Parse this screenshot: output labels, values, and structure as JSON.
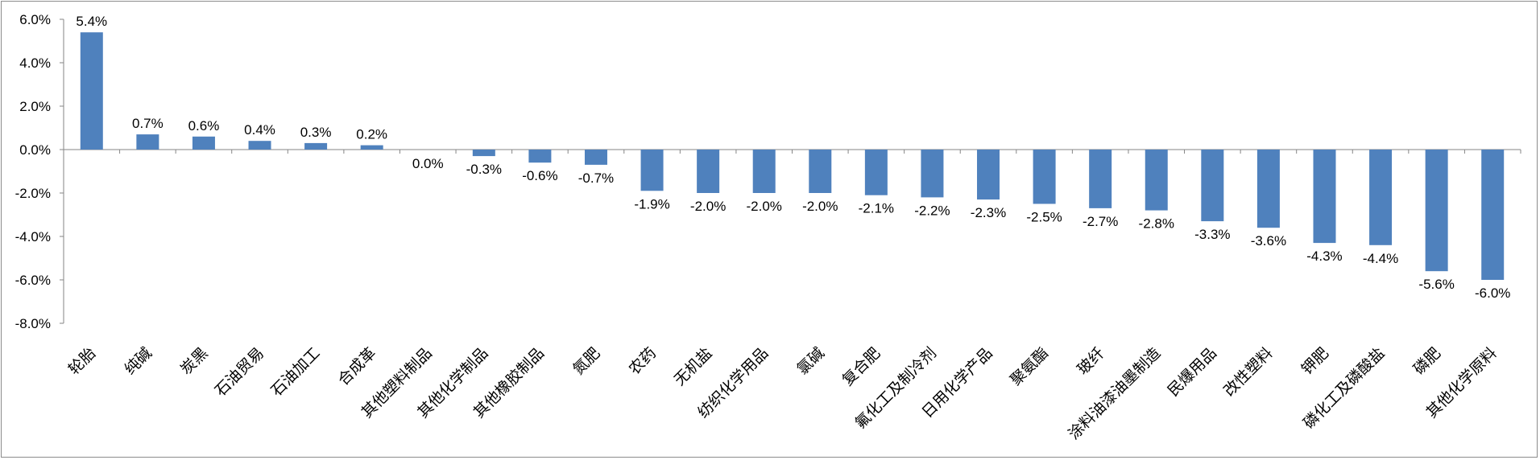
{
  "chart_data": {
    "type": "bar",
    "title": "",
    "xlabel": "",
    "ylabel": "",
    "ylim": [
      -8.0,
      6.0
    ],
    "y_ticks": [
      "6.0%",
      "4.0%",
      "2.0%",
      "0.0%",
      "-2.0%",
      "-4.0%",
      "-6.0%",
      "-8.0%"
    ],
    "grid": false,
    "legend": "none",
    "bar_color": "#4f81bd",
    "categories": [
      "轮胎",
      "纯碱",
      "炭黑",
      "石油贸易",
      "石油加工",
      "合成革",
      "其他塑料制品",
      "其他化学制品",
      "其他橡胶制品",
      "氮肥",
      "农药",
      "无机盐",
      "纺织化学用品",
      "氯碱",
      "复合肥",
      "氟化工及制冷剂",
      "日用化学产品",
      "聚氨酯",
      "玻纤",
      "涂料油漆油墨制造",
      "民爆用品",
      "改性塑料",
      "钾肥",
      "磷化工及磷酸盐",
      "磷肥",
      "其他化学原料"
    ],
    "values": [
      5.4,
      0.7,
      0.6,
      0.4,
      0.3,
      0.2,
      0.0,
      -0.3,
      -0.6,
      -0.7,
      -1.9,
      -2.0,
      -2.0,
      -2.0,
      -2.1,
      -2.2,
      -2.3,
      -2.5,
      -2.7,
      -2.8,
      -3.3,
      -3.6,
      -4.3,
      -4.4,
      -5.6,
      -6.0
    ],
    "data_labels": [
      "5.4%",
      "0.7%",
      "0.6%",
      "0.4%",
      "0.3%",
      "0.2%",
      "0.0%",
      "-0.3%",
      "-0.6%",
      "-0.7%",
      "-1.9%",
      "-2.0%",
      "-2.0%",
      "-2.0%",
      "-2.1%",
      "-2.2%",
      "-2.3%",
      "-2.5%",
      "-2.7%",
      "-2.8%",
      "-3.3%",
      "-3.6%",
      "-4.3%",
      "-4.4%",
      "-5.6%",
      "-6.0%"
    ]
  }
}
